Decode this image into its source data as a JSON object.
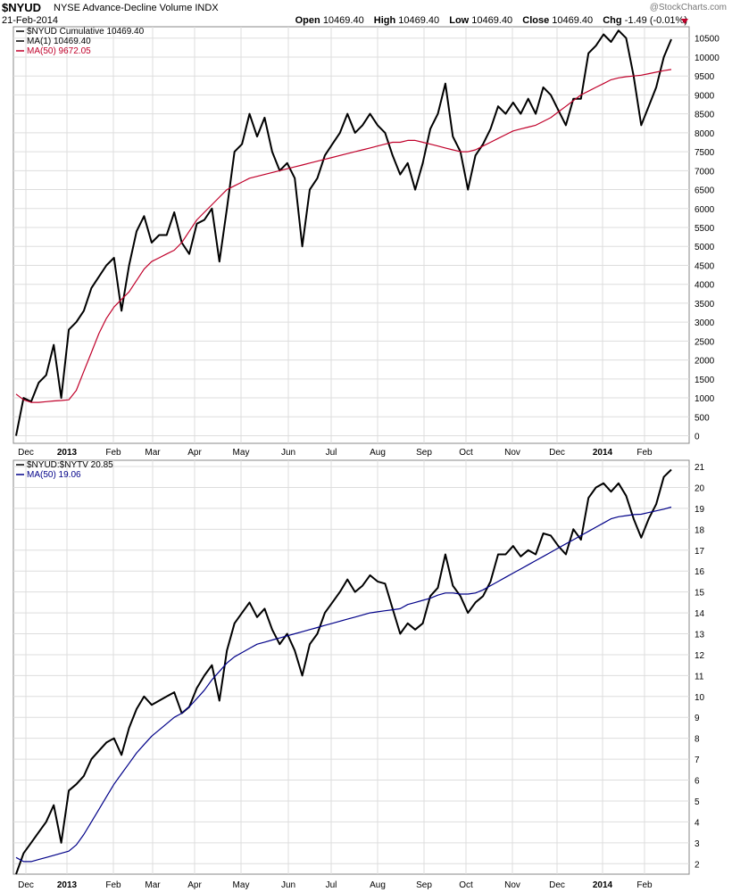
{
  "header": {
    "symbol": "$NYUD",
    "full_name": "NYSE Advance-Decline Volume INDX",
    "date": "21-Feb-2014",
    "credit": "@StockCharts.com",
    "open_label": "Open",
    "open": "10469.40",
    "high_label": "High",
    "high": "10469.40",
    "low_label": "Low",
    "low": "10469.40",
    "close_label": "Close",
    "close": "10469.40",
    "chg_label": "Chg",
    "chg": "-1.49 (-0.01%)",
    "chg_color": "#c0002a"
  },
  "x_axis_labels": [
    {
      "label": "Dec",
      "bold": false
    },
    {
      "label": "2013",
      "bold": true
    },
    {
      "label": "Feb",
      "bold": false
    },
    {
      "label": "Mar",
      "bold": false
    },
    {
      "label": "Apr",
      "bold": false
    },
    {
      "label": "May",
      "bold": false
    },
    {
      "label": "Jun",
      "bold": false
    },
    {
      "label": "Jul",
      "bold": false
    },
    {
      "label": "Aug",
      "bold": false
    },
    {
      "label": "Sep",
      "bold": false
    },
    {
      "label": "Oct",
      "bold": false
    },
    {
      "label": "Nov",
      "bold": false
    },
    {
      "label": "Dec",
      "bold": false
    },
    {
      "label": "2014",
      "bold": true
    },
    {
      "label": "Feb",
      "bold": false
    }
  ],
  "chart_data": [
    {
      "type": "line",
      "legend": [
        {
          "text": "$NYUD Cumulative 10469.40",
          "color": "#000000"
        },
        {
          "text": "MA(1) 10469.40",
          "color": "#000000"
        },
        {
          "text": "MA(50) 9672.05",
          "color": "#c0002a"
        }
      ],
      "ylim": [
        -200,
        10800
      ],
      "yticks": [
        0,
        500,
        1000,
        1500,
        2000,
        2500,
        3000,
        3500,
        4000,
        4500,
        5000,
        5500,
        6000,
        6500,
        7000,
        7500,
        8000,
        8500,
        9000,
        9500,
        10000,
        10500
      ],
      "grid": true,
      "series": [
        {
          "color": "#000000",
          "width": 2,
          "values": [
            0,
            1000,
            900,
            1400,
            1600,
            2400,
            1000,
            2800,
            3000,
            3300,
            3900,
            4200,
            4500,
            4700,
            3300,
            4500,
            5400,
            5800,
            5100,
            5300,
            5300,
            5900,
            5100,
            4800,
            5600,
            5700,
            6000,
            4600,
            6000,
            7500,
            7700,
            8500,
            7900,
            8400,
            7500,
            7000,
            7200,
            6800,
            5000,
            6500,
            6800,
            7400,
            7700,
            8000,
            8500,
            8000,
            8200,
            8500,
            8200,
            8000,
            7400,
            6900,
            7200,
            6500,
            7200,
            8100,
            8500,
            9300,
            7900,
            7500,
            6500,
            7400,
            7700,
            8100,
            8700,
            8500,
            8800,
            8500,
            8900,
            8500,
            9200,
            9000,
            8600,
            8200,
            8900,
            8900,
            10100,
            10300,
            10600,
            10400,
            10700,
            10500,
            9500,
            8200,
            8700,
            9200,
            10000,
            10469.4
          ]
        },
        {
          "color": "#c0002a",
          "width": 1.2,
          "values": [
            1100,
            950,
            880,
            880,
            900,
            920,
            930,
            950,
            1200,
            1700,
            2200,
            2700,
            3100,
            3400,
            3600,
            3800,
            4100,
            4400,
            4600,
            4700,
            4800,
            4900,
            5100,
            5400,
            5700,
            5900,
            6100,
            6300,
            6500,
            6600,
            6700,
            6800,
            6850,
            6900,
            6950,
            7000,
            7050,
            7100,
            7150,
            7200,
            7250,
            7300,
            7350,
            7400,
            7450,
            7500,
            7550,
            7600,
            7650,
            7700,
            7750,
            7750,
            7800,
            7800,
            7750,
            7700,
            7650,
            7600,
            7550,
            7500,
            7500,
            7550,
            7650,
            7750,
            7850,
            7950,
            8050,
            8100,
            8150,
            8200,
            8300,
            8400,
            8550,
            8700,
            8850,
            9000,
            9100,
            9200,
            9300,
            9400,
            9450,
            9480,
            9500,
            9520,
            9560,
            9600,
            9640,
            9672.05
          ]
        }
      ]
    },
    {
      "type": "line",
      "legend": [
        {
          "text": "$NYUD:$NYTV 20.85",
          "color": "#000000"
        },
        {
          "text": "MA(50) 19.06",
          "color": "#000088"
        }
      ],
      "ylim": [
        1.5,
        21.3
      ],
      "yticks": [
        2,
        3,
        4,
        5,
        6,
        7,
        8,
        9,
        10,
        11,
        12,
        13,
        14,
        15,
        16,
        17,
        18,
        19,
        20,
        21
      ],
      "grid": true,
      "series": [
        {
          "color": "#000000",
          "width": 2,
          "values": [
            1.5,
            2.5,
            3.0,
            3.5,
            4.0,
            4.8,
            3.0,
            5.5,
            5.8,
            6.2,
            7.0,
            7.4,
            7.8,
            8.0,
            7.2,
            8.5,
            9.4,
            10.0,
            9.6,
            9.8,
            10.0,
            10.2,
            9.2,
            9.5,
            10.4,
            11.0,
            11.5,
            9.8,
            12.2,
            13.5,
            14.0,
            14.5,
            13.8,
            14.2,
            13.2,
            12.5,
            13.0,
            12.2,
            11.0,
            12.5,
            13.0,
            14.0,
            14.5,
            15.0,
            15.6,
            15.0,
            15.3,
            15.8,
            15.5,
            15.4,
            14.2,
            13.0,
            13.5,
            13.2,
            13.5,
            14.8,
            15.2,
            16.8,
            15.3,
            14.8,
            14.0,
            14.5,
            14.8,
            15.5,
            16.8,
            16.8,
            17.2,
            16.7,
            17.0,
            16.8,
            17.8,
            17.7,
            17.2,
            16.8,
            18.0,
            17.5,
            19.5,
            20.0,
            20.2,
            19.8,
            20.2,
            19.6,
            18.5,
            17.6,
            18.5,
            19.2,
            20.5,
            20.85
          ]
        },
        {
          "color": "#000088",
          "width": 1.2,
          "values": [
            2.3,
            2.1,
            2.1,
            2.2,
            2.3,
            2.4,
            2.5,
            2.6,
            2.9,
            3.4,
            4.0,
            4.6,
            5.2,
            5.8,
            6.3,
            6.8,
            7.3,
            7.7,
            8.1,
            8.4,
            8.7,
            9.0,
            9.2,
            9.5,
            9.9,
            10.3,
            10.8,
            11.2,
            11.6,
            11.9,
            12.1,
            12.3,
            12.5,
            12.6,
            12.7,
            12.8,
            12.9,
            13.0,
            13.1,
            13.2,
            13.3,
            13.4,
            13.5,
            13.6,
            13.7,
            13.8,
            13.9,
            14.0,
            14.05,
            14.1,
            14.15,
            14.2,
            14.4,
            14.5,
            14.6,
            14.7,
            14.85,
            14.95,
            14.95,
            14.9,
            14.9,
            14.95,
            15.1,
            15.3,
            15.5,
            15.7,
            15.9,
            16.1,
            16.3,
            16.5,
            16.7,
            16.9,
            17.1,
            17.3,
            17.5,
            17.7,
            17.9,
            18.1,
            18.3,
            18.5,
            18.6,
            18.65,
            18.7,
            18.72,
            18.8,
            18.88,
            18.96,
            19.06
          ]
        }
      ]
    }
  ]
}
